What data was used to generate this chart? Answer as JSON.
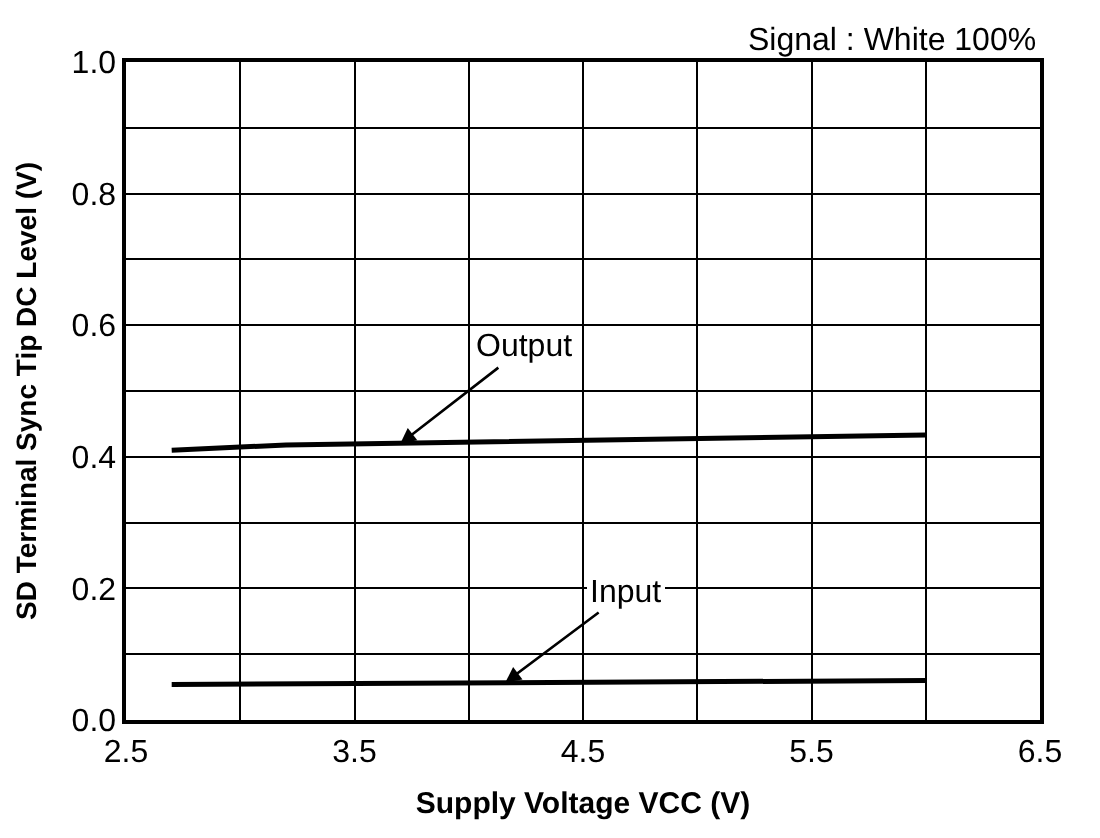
{
  "chart_data": {
    "type": "line",
    "xlabel": "Supply Voltage VCC (V)",
    "ylabel": "SD Terminal Sync Tip DC Level (V)",
    "series": [
      {
        "color": "#000000",
        "x": [
          2.7,
          3.2,
          6.0
        ],
        "values": [
          0.41,
          0.418,
          0.433
        ]
      },
      {
        "color": "#000000",
        "x": [
          2.7,
          6.0
        ],
        "values": [
          0.054,
          0.06
        ]
      }
    ],
    "xlim": [
      2.5,
      6.5
    ],
    "ylim": [
      0.0,
      1.0
    ],
    "xticks": [
      {
        "value": 2.5,
        "label": "2.5"
      },
      {
        "value": 3.0,
        "label": null
      },
      {
        "value": 3.5,
        "label": "3.5"
      },
      {
        "value": 4.0,
        "label": null
      },
      {
        "value": 4.5,
        "label": "4.5"
      },
      {
        "value": 5.0,
        "label": null
      },
      {
        "value": 5.5,
        "label": "5.5"
      },
      {
        "value": 6.0,
        "label": null
      },
      {
        "value": 6.5,
        "label": "6.5"
      }
    ],
    "yticks": [
      {
        "value": 0.0,
        "label": "0.0"
      },
      {
        "value": 0.1,
        "label": null
      },
      {
        "value": 0.2,
        "label": "0.2"
      },
      {
        "value": 0.3,
        "label": null
      },
      {
        "value": 0.4,
        "label": "0.4"
      },
      {
        "value": 0.5,
        "label": null
      },
      {
        "value": 0.6,
        "label": "0.6"
      },
      {
        "value": 0.7,
        "label": null
      },
      {
        "value": 0.8,
        "label": "0.8"
      },
      {
        "value": 0.9,
        "label": null
      },
      {
        "value": 1.0,
        "label": "1.0"
      }
    ],
    "grid": true,
    "marker": "none",
    "line_style": "solid",
    "annotations": [
      {
        "text": "Output",
        "x": 3.7,
        "y": 0.42
      },
      {
        "text": "Input",
        "x": 4.16,
        "y": 0.057
      },
      "Signal : White 100%"
    ]
  }
}
